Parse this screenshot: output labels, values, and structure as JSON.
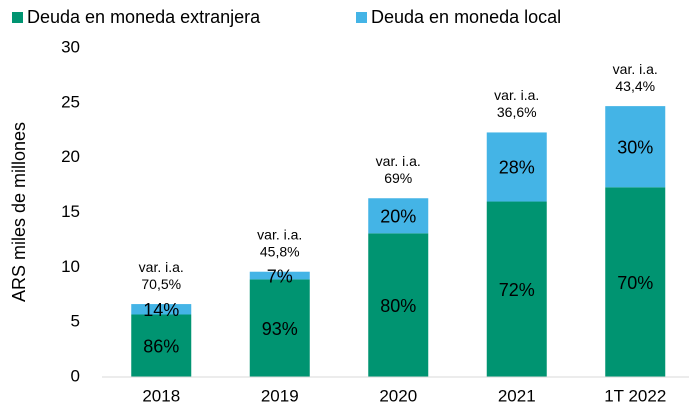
{
  "chart_data": {
    "type": "stacked_bar",
    "y_label": "ARS miles de millones",
    "categories": [
      "2018",
      "2019",
      "2020",
      "2021",
      "1T 2022"
    ],
    "series": [
      {
        "name": "Deuda en moneda extranjera",
        "color": "#009471",
        "values": [
          5.7,
          8.9,
          13.1,
          16.0,
          17.3
        ],
        "value_labels": [
          "86%",
          "93%",
          "80%",
          "72%",
          "70%"
        ]
      },
      {
        "name": "Deuda en moneda local",
        "color": "#44b4e6",
        "values": [
          0.95,
          0.7,
          3.2,
          6.3,
          7.4
        ],
        "value_labels": [
          "14%",
          "7%",
          "20%",
          "28%",
          "30%"
        ]
      }
    ],
    "annotations": [
      [
        "var. i.a.",
        "70,5%"
      ],
      [
        "var. i.a.",
        "45,8%"
      ],
      [
        "var. i.a.",
        "69%"
      ],
      [
        "var. i.a.",
        "36,6%"
      ],
      [
        "var. i.a.",
        "43,4%"
      ]
    ],
    "ylim": [
      0,
      30
    ],
    "yticks": [
      0,
      5,
      10,
      15,
      20,
      25,
      30
    ],
    "grid": false,
    "legend": "top-left"
  }
}
